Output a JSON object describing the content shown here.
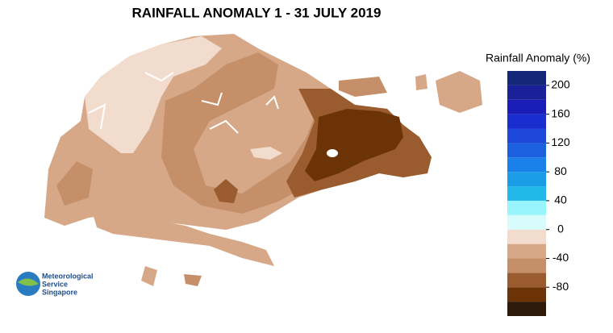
{
  "title": "RAINFALL ANOMALY 1 - 31 JULY 2019",
  "legend": {
    "title": "Rainfall Anomaly (%)",
    "edges": [
      -120,
      -100,
      -80,
      -60,
      -40,
      -20,
      0,
      20,
      40,
      60,
      80,
      100,
      120,
      140,
      160,
      180,
      200,
      220
    ],
    "colors": [
      "#2e1a0b",
      "#6b3306",
      "#9a5c2e",
      "#c58f6a",
      "#d6a888",
      "#f2dccd",
      "#d8fbfb",
      "#98f5fb",
      "#22b9e9",
      "#1a9de6",
      "#1a80ea",
      "#1c60e0",
      "#1d47d9",
      "#1a2ed0",
      "#1a1cb8",
      "#1a2098",
      "#14287a"
    ],
    "ticks": [
      200,
      160,
      120,
      80,
      40,
      0,
      -40,
      -80
    ]
  },
  "logo": {
    "lines": [
      "Meteorological",
      "Service",
      "Singapore"
    ]
  }
}
